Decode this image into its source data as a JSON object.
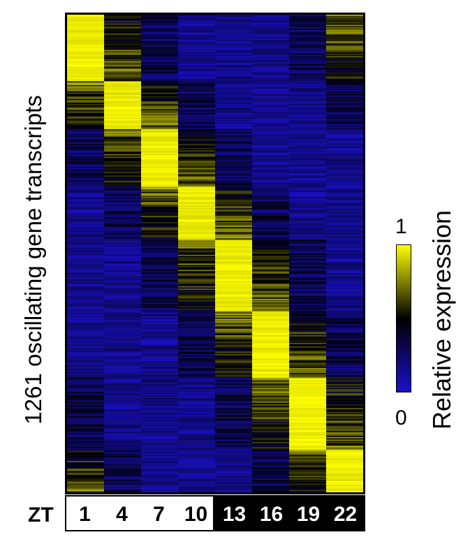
{
  "chart_data": {
    "type": "heatmap",
    "ylabel": "1261 oscillating gene transcripts",
    "x_prefix": "ZT",
    "x": [
      "1",
      "4",
      "7",
      "10",
      "13",
      "16",
      "19",
      "22"
    ],
    "x_light": [
      "1",
      "4",
      "7",
      "10"
    ],
    "x_dark": [
      "13",
      "16",
      "19",
      "22"
    ],
    "n_rows": 1261,
    "peak_row_fraction_start": [
      0.0,
      0.14,
      0.24,
      0.36,
      0.47,
      0.62,
      0.76,
      0.91
    ],
    "peak_row_fraction_end": [
      0.14,
      0.24,
      0.36,
      0.47,
      0.62,
      0.76,
      0.91,
      1.0
    ],
    "colorbar": {
      "label": "Relative expression",
      "min": "0",
      "max": "1",
      "colors": [
        "#1a10c8",
        "#000000",
        "#ffff00"
      ]
    }
  }
}
